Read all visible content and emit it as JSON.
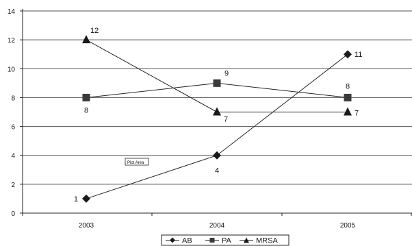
{
  "chart_data": {
    "type": "line",
    "categories": [
      "2003",
      "2004",
      "2005"
    ],
    "series": [
      {
        "name": "AB",
        "values": [
          1,
          4,
          11
        ],
        "marker": "diamond",
        "labels": [
          "1",
          "4",
          "11"
        ]
      },
      {
        "name": "PA",
        "values": [
          8,
          9,
          8
        ],
        "marker": "square",
        "labels": [
          "8",
          "9",
          "8"
        ]
      },
      {
        "name": "MRSA",
        "values": [
          12,
          7,
          7
        ],
        "marker": "triangle",
        "labels": [
          "12",
          "7",
          "7"
        ]
      }
    ],
    "ylim": [
      0,
      14
    ],
    "yticks": [
      "0",
      "2",
      "4",
      "6",
      "8",
      "10",
      "12",
      "14"
    ],
    "grid": true,
    "legend_position": "bottom-center",
    "tooltip": "Plot Area",
    "colors": {
      "line": "#222222",
      "grid": "#555555",
      "marker": "#1a1a1a"
    }
  }
}
